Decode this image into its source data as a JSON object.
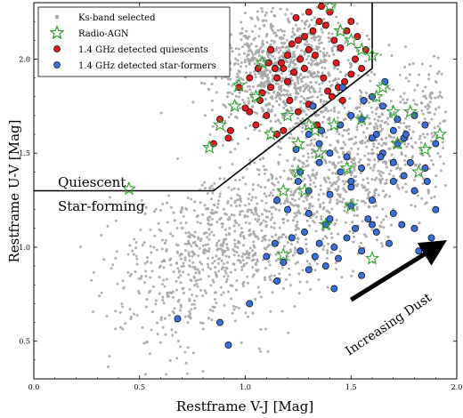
{
  "chart_data": {
    "type": "scatter",
    "xlabel": "Restframe V-J [Mag]",
    "ylabel": "Restframe U-V [Mag]",
    "xlim": [
      0.0,
      2.0
    ],
    "ylim": [
      0.3,
      2.3
    ],
    "xticks": [
      "0.0",
      "0.5",
      "1.0",
      "1.5",
      "2.0"
    ],
    "yticks": [
      "0.5",
      "1.0",
      "1.5",
      "2.0"
    ],
    "grid": false,
    "legend_position": "top-left",
    "legend": [
      {
        "name": "Ks-band selected",
        "marker": "small grey dot",
        "color": "#b3b3b3"
      },
      {
        "name": "Radio-AGN",
        "marker": "open green star",
        "color": "#2ca02c"
      },
      {
        "name": "1.4 GHz detected quiescents",
        "marker": "red circle",
        "color": "#e31a1c"
      },
      {
        "name": "1.4 GHz detected star-formers",
        "marker": "blue circle",
        "color": "#3a6fd8"
      }
    ],
    "quiescent_boundary": {
      "x": [
        0.0,
        0.85,
        1.6,
        1.6
      ],
      "y": [
        1.3,
        1.3,
        1.95,
        2.3
      ]
    },
    "annotations": {
      "quiescent": "Quiescent",
      "star_forming": "Star-forming",
      "dust": "Increasing Dust"
    },
    "dust_arrow": {
      "from": [
        1.5,
        0.72
      ],
      "to": [
        1.9,
        1.0
      ]
    },
    "series": [
      {
        "name": "1.4 GHz detected quiescents",
        "color": "#e31a1c",
        "x": [
          1.02,
          1.07,
          1.12,
          1.15,
          1.18,
          1.2,
          1.22,
          1.25,
          1.28,
          1.3,
          1.32,
          1.35,
          1.38,
          1.4,
          1.42,
          1.45,
          1.48,
          1.5,
          1.52,
          1.55,
          1.28,
          1.33,
          1.37,
          1.43,
          1.47,
          1.12,
          1.17,
          1.24,
          1.3,
          1.36,
          1.41,
          1.46,
          0.97,
          1.02,
          1.08,
          1.14,
          1.2,
          1.26,
          1.32,
          0.88,
          0.93,
          1.0,
          1.05,
          1.1,
          1.15,
          1.21,
          0.85,
          0.92,
          1.18,
          1.25,
          1.34,
          1.39,
          1.44,
          1.5,
          1.53,
          1.57,
          1.3,
          1.23,
          1.11,
          1.06
        ],
        "y": [
          1.72,
          1.78,
          1.85,
          1.9,
          1.95,
          2.02,
          2.08,
          2.1,
          2.12,
          2.05,
          2.15,
          2.2,
          2.18,
          2.25,
          2.1,
          2.06,
          2.15,
          2.2,
          2.0,
          1.95,
          1.95,
          2.02,
          1.9,
          1.98,
          1.88,
          2.05,
          1.98,
          2.22,
          2.25,
          2.28,
          1.8,
          1.78,
          1.85,
          1.9,
          1.82,
          1.95,
          1.88,
          2.0,
          1.75,
          1.68,
          1.62,
          1.74,
          1.65,
          1.7,
          1.6,
          1.78,
          1.55,
          1.58,
          1.62,
          1.72,
          1.65,
          1.83,
          1.85,
          1.92,
          2.12,
          2.05,
          1.76,
          1.93,
          1.98,
          1.95
        ]
      },
      {
        "name": "1.4 GHz detected star-formers",
        "color": "#3a6fd8",
        "x": [
          1.3,
          1.35,
          1.4,
          1.45,
          1.5,
          1.55,
          1.6,
          1.65,
          1.7,
          1.75,
          1.8,
          1.85,
          1.9,
          1.35,
          1.45,
          1.55,
          1.65,
          1.75,
          1.85,
          1.25,
          1.3,
          1.4,
          1.5,
          1.6,
          1.7,
          1.8,
          1.9,
          1.15,
          1.2,
          1.3,
          1.4,
          1.5,
          1.6,
          1.7,
          1.8,
          1.22,
          1.28,
          1.35,
          1.42,
          1.48,
          1.55,
          1.62,
          1.68,
          1.74,
          1.82,
          1.88,
          1.1,
          1.18,
          1.26,
          1.33,
          1.38,
          1.44,
          1.52,
          1.58,
          1.64,
          1.72,
          1.78,
          1.86,
          1.32,
          1.46,
          1.56,
          1.66,
          1.76,
          1.24,
          1.36,
          1.48,
          1.6,
          1.72,
          0.68,
          0.88,
          0.92,
          1.02,
          1.15,
          1.3,
          1.42,
          1.55,
          1.62,
          1.7,
          1.5,
          1.38,
          1.26,
          1.14
        ],
        "y": [
          1.6,
          1.55,
          1.5,
          1.65,
          1.7,
          1.68,
          1.8,
          1.75,
          1.62,
          1.58,
          1.7,
          1.65,
          1.55,
          1.45,
          1.4,
          1.42,
          1.5,
          1.38,
          1.42,
          1.35,
          1.3,
          1.28,
          1.32,
          1.25,
          1.35,
          1.3,
          1.2,
          1.25,
          1.2,
          1.18,
          1.15,
          1.22,
          1.12,
          1.18,
          1.1,
          1.05,
          1.08,
          1.02,
          1.0,
          1.05,
          0.98,
          1.08,
          1.02,
          1.12,
          0.98,
          1.05,
          0.95,
          0.92,
          0.98,
          0.95,
          0.9,
          0.94,
          1.1,
          1.15,
          1.48,
          1.55,
          1.45,
          1.35,
          1.75,
          1.85,
          1.78,
          1.88,
          1.6,
          1.52,
          1.62,
          1.48,
          1.58,
          1.68,
          0.62,
          0.6,
          0.48,
          0.7,
          0.82,
          0.88,
          0.78,
          0.85,
          1.6,
          1.45,
          1.35,
          1.12,
          1.4,
          1.02
        ]
      },
      {
        "name": "Radio-AGN",
        "color": "#2ca02c",
        "x": [
          0.45,
          0.83,
          0.88,
          0.95,
          1.05,
          1.12,
          1.2,
          1.25,
          1.3,
          1.35,
          1.4,
          1.45,
          1.5,
          1.55,
          1.6,
          1.65,
          1.7,
          1.78,
          1.85,
          1.92,
          1.6,
          1.48,
          1.38,
          1.28,
          1.18,
          1.18,
          1.25,
          1.42,
          1.55,
          1.62,
          1.72,
          1.82,
          1.5,
          1.33,
          1.08,
          0.97
        ],
        "y": [
          1.31,
          1.53,
          1.65,
          1.75,
          1.8,
          1.6,
          1.7,
          1.55,
          1.65,
          1.5,
          2.28,
          2.15,
          2.1,
          2.05,
          2.02,
          1.85,
          1.72,
          1.72,
          1.52,
          1.6,
          0.94,
          1.42,
          1.12,
          1.3,
          1.3,
          0.96,
          1.4,
          1.65,
          1.68,
          1.8,
          1.55,
          1.4,
          1.22,
          1.62,
          1.98,
          1.86
        ]
      }
    ],
    "background_cloud": {
      "name": "Ks-band selected",
      "color": "#b3b3b3",
      "count": 2600
    }
  }
}
